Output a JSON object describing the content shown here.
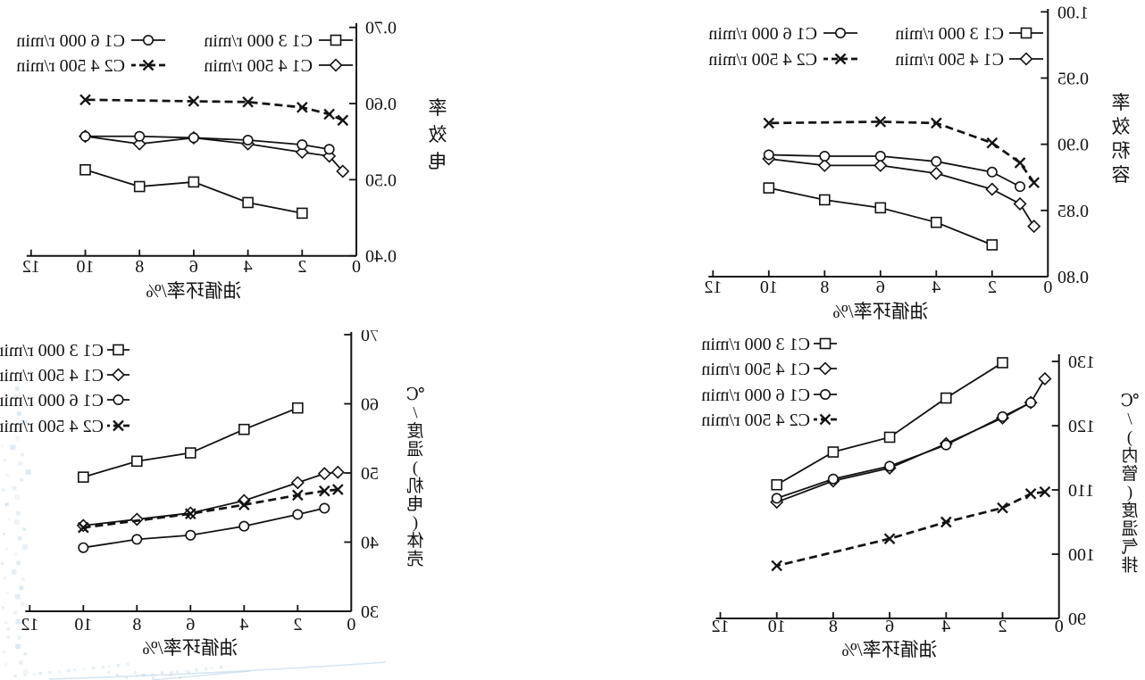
{
  "display": {
    "mirrored_horizontally": true,
    "background_color": "#ffffff",
    "ink_color": "#121212",
    "decoration_color": "#b9d2e6"
  },
  "figure": {
    "xlabel": "油循环率/%",
    "x_tick_labels": [
      "0",
      "2",
      "4",
      "6",
      "8",
      "10",
      "12"
    ]
  },
  "chart_data": [
    {
      "type": "line",
      "title": "",
      "ylabel": "容积效率",
      "xlabel": "油循环率/%",
      "xlim": [
        0,
        12
      ],
      "ylim": [
        0.8,
        1.0
      ],
      "x_ticks": [
        "0",
        "2",
        "4",
        "6",
        "8",
        "10",
        "12"
      ],
      "y_ticks": [
        "0.80",
        "0.85",
        "0.90",
        "0.95",
        "1.00"
      ],
      "grid": false,
      "legend_position": "top-inside",
      "legend_rows": [
        [
          0,
          2
        ],
        [
          1,
          3
        ]
      ],
      "series": [
        {
          "name": "C1 3 000 r/min",
          "marker": "square",
          "line": "solid",
          "x": [
            2,
            4,
            6,
            8,
            10
          ],
          "y": [
            0.824,
            0.841,
            0.852,
            0.858,
            0.867
          ]
        },
        {
          "name": "C1 4 500 r/min",
          "marker": "diamond",
          "line": "solid",
          "x": [
            0.5,
            1,
            2,
            4,
            6,
            8,
            10
          ],
          "y": [
            0.838,
            0.855,
            0.866,
            0.878,
            0.884,
            0.884,
            0.889
          ]
        },
        {
          "name": "C1 6 000 r/min",
          "marker": "circle",
          "line": "solid",
          "x": [
            1,
            2,
            4,
            6,
            8,
            10
          ],
          "y": [
            0.868,
            0.879,
            0.887,
            0.891,
            0.891,
            0.892
          ]
        },
        {
          "name": "C2 4 500 r/min",
          "marker": "xcross",
          "line": "dashed",
          "x": [
            0.5,
            1,
            2,
            4,
            6,
            10
          ],
          "y": [
            0.871,
            0.886,
            0.901,
            0.916,
            0.917,
            0.916
          ]
        }
      ]
    },
    {
      "type": "line",
      "title": "",
      "ylabel": "电效率",
      "xlabel": "油循环率/%",
      "xlim": [
        0,
        12
      ],
      "ylim": [
        0.4,
        0.7
      ],
      "x_ticks": [
        "0",
        "2",
        "4",
        "6",
        "8",
        "10",
        "12"
      ],
      "y_ticks": [
        "0.40",
        "0.50",
        "0.60",
        "0.70"
      ],
      "grid": false,
      "legend_position": "top-inside",
      "legend_rows": [
        [
          0,
          2
        ],
        [
          1,
          3
        ]
      ],
      "series": [
        {
          "name": "C1 3 000 r/min",
          "marker": "square",
          "line": "solid",
          "x": [
            2,
            4,
            6,
            8,
            10
          ],
          "y": [
            0.456,
            0.47,
            0.497,
            0.491,
            0.513
          ]
        },
        {
          "name": "C1 4 500 r/min",
          "marker": "diamond",
          "line": "solid",
          "x": [
            0.5,
            1,
            2,
            4,
            6,
            8,
            10
          ],
          "y": [
            0.511,
            0.531,
            0.536,
            0.547,
            0.555,
            0.547,
            0.557
          ]
        },
        {
          "name": "C1 6 000 r/min",
          "marker": "circle",
          "line": "solid",
          "x": [
            1,
            2,
            4,
            6,
            8,
            10
          ],
          "y": [
            0.54,
            0.546,
            0.552,
            0.555,
            0.557,
            0.557
          ]
        },
        {
          "name": "C2 4 500 r/min",
          "marker": "xcross",
          "line": "dashed",
          "x": [
            0.5,
            1,
            2,
            4,
            6,
            10
          ],
          "y": [
            0.578,
            0.586,
            0.595,
            0.602,
            0.603,
            0.605
          ]
        }
      ]
    },
    {
      "type": "line",
      "title": "",
      "ylabel": "排气温度(管内)/℃",
      "xlabel": "油循环率/%",
      "xlim": [
        0,
        12
      ],
      "ylim": [
        90,
        130
      ],
      "x_ticks": [
        "0",
        "2",
        "4",
        "6",
        "8",
        "10",
        "12"
      ],
      "y_ticks": [
        "90",
        "100",
        "110",
        "120",
        "130"
      ],
      "grid": false,
      "legend_position": "top-left-inside",
      "legend_rows": [
        [
          0
        ],
        [
          1
        ],
        [
          2
        ],
        [
          3
        ]
      ],
      "series": [
        {
          "name": "C1 3 000 r/min",
          "marker": "square",
          "line": "solid",
          "x": [
            2,
            4,
            6,
            8,
            10
          ],
          "y": [
            129.8,
            124.3,
            118.2,
            115.9,
            110.8
          ]
        },
        {
          "name": "C1 4 500 r/min",
          "marker": "diamond",
          "line": "solid",
          "x": [
            0.5,
            1,
            2,
            4,
            6,
            8,
            10
          ],
          "y": [
            127.3,
            123.6,
            121.2,
            117.2,
            113.4,
            111.4,
            108.1
          ]
        },
        {
          "name": "C1 6 000 r/min",
          "marker": "circle",
          "line": "solid",
          "x": [
            1,
            2,
            4,
            6,
            8,
            10
          ],
          "y": [
            123.6,
            121.4,
            117.0,
            113.7,
            111.7,
            108.7
          ]
        },
        {
          "name": "C2 4 500 r/min",
          "marker": "xcross",
          "line": "dashed",
          "x": [
            0.5,
            1,
            2,
            4,
            6,
            10
          ],
          "y": [
            109.7,
            109.4,
            107.2,
            105.0,
            102.4,
            98.2
          ]
        }
      ]
    },
    {
      "type": "line",
      "title": "",
      "ylabel": "壳体(电机)温度/℃",
      "xlabel": "油循环率/%",
      "xlim": [
        0,
        12
      ],
      "ylim": [
        30,
        70
      ],
      "x_ticks": [
        "0",
        "2",
        "4",
        "6",
        "8",
        "10",
        "12"
      ],
      "y_ticks": [
        "30",
        "40",
        "50",
        "60",
        "70"
      ],
      "grid": false,
      "legend_position": "top-left-inside",
      "legend_rows": [
        [
          0
        ],
        [
          1
        ],
        [
          2
        ],
        [
          3
        ]
      ],
      "series": [
        {
          "name": "C1 3 000 r/min",
          "marker": "square",
          "line": "solid",
          "x": [
            2,
            4,
            6,
            8,
            10
          ],
          "y": [
            59.4,
            56.3,
            52.9,
            51.7,
            49.4
          ]
        },
        {
          "name": "C1 4 500 r/min",
          "marker": "diamond",
          "line": "solid",
          "x": [
            0.5,
            1,
            2,
            4,
            6,
            8,
            10
          ],
          "y": [
            50.1,
            49.9,
            48.6,
            46.0,
            44.2,
            43.3,
            42.4
          ]
        },
        {
          "name": "C1 6 000 r/min",
          "marker": "circle",
          "line": "solid",
          "x": [
            1,
            2,
            4,
            6,
            8,
            10
          ],
          "y": [
            44.9,
            44.0,
            42.3,
            41.0,
            40.4,
            39.2
          ]
        },
        {
          "name": "C2 4 500 r/min",
          "marker": "xcross",
          "line": "dashed",
          "x": [
            0.5,
            1,
            2,
            4,
            6,
            10
          ],
          "y": [
            47.6,
            47.4,
            46.8,
            45.4,
            44.1,
            42.1
          ]
        }
      ]
    }
  ]
}
